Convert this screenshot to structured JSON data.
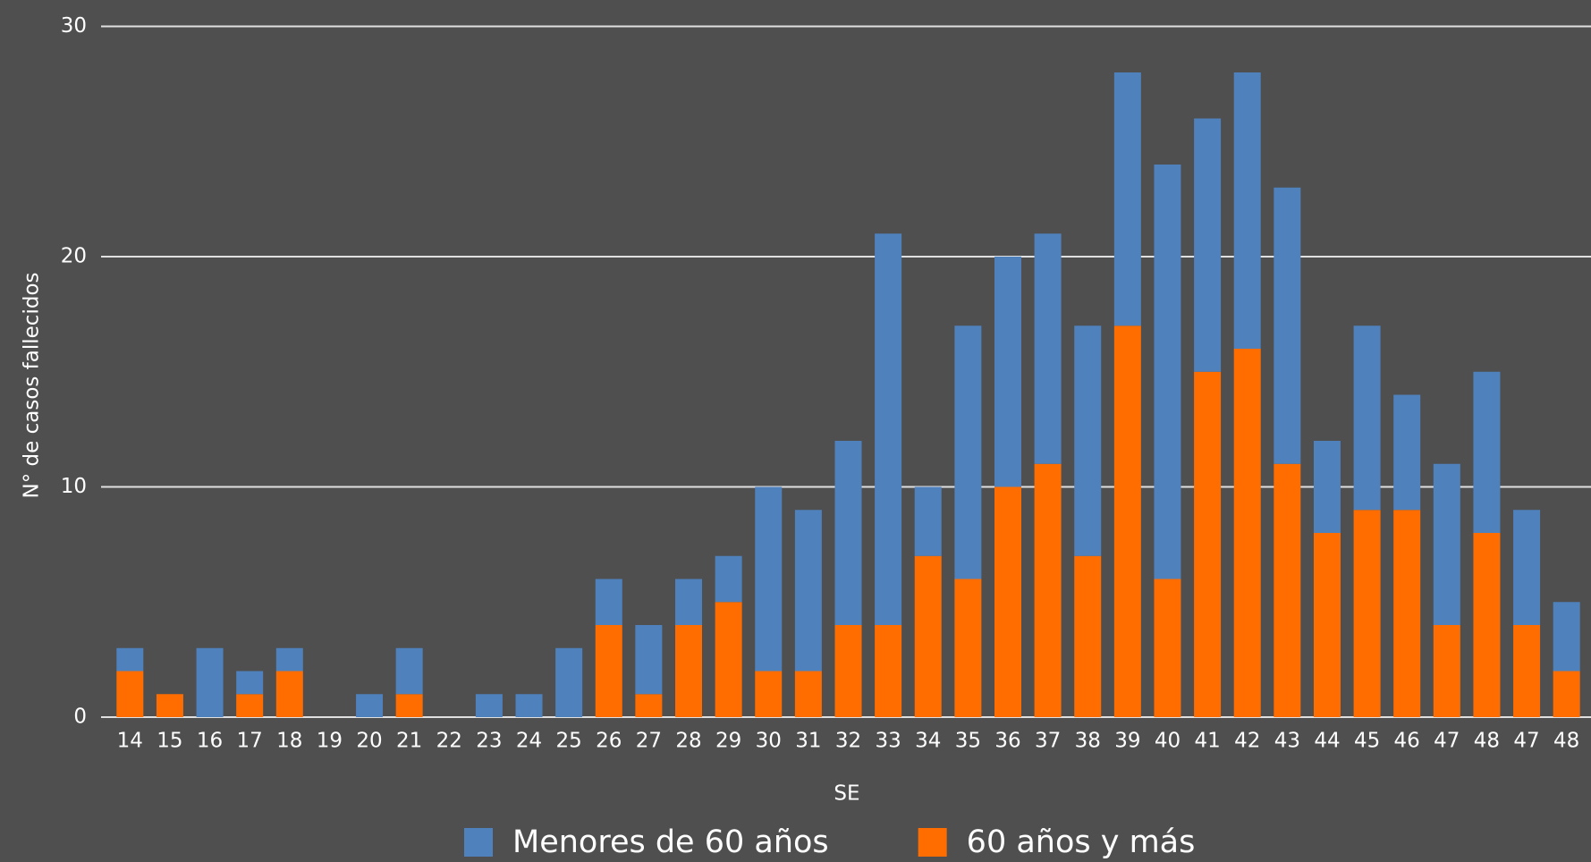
{
  "chart_data": {
    "type": "stacked_bar",
    "x_label": "SE",
    "y_label": "N° de casos fallecidos",
    "categories": [
      "14",
      "15",
      "16",
      "17",
      "18",
      "19",
      "20",
      "21",
      "22",
      "23",
      "24",
      "25",
      "26",
      "27",
      "28",
      "29",
      "30",
      "31",
      "32",
      "33",
      "34",
      "35",
      "36",
      "37",
      "38",
      "39",
      "40",
      "41",
      "42",
      "43",
      "44",
      "45",
      "46",
      "47",
      "48",
      "47",
      "48"
    ],
    "series": [
      {
        "name": "Menores de 60 años",
        "color": "#4f81bd",
        "values": [
          1,
          0,
          3,
          1,
          1,
          0,
          1,
          2,
          0,
          1,
          1,
          3,
          2,
          3,
          2,
          2,
          8,
          7,
          8,
          17,
          3,
          11,
          10,
          10,
          10,
          11,
          18,
          11,
          12,
          12,
          4,
          8,
          5,
          7,
          7,
          5,
          3
        ]
      },
      {
        "name": "60 años y más",
        "color": "#ff6d00",
        "values": [
          2,
          1,
          0,
          1,
          2,
          0,
          0,
          1,
          0,
          0,
          0,
          0,
          4,
          1,
          4,
          5,
          2,
          2,
          4,
          4,
          7,
          6,
          10,
          11,
          7,
          17,
          6,
          15,
          16,
          11,
          8,
          9,
          9,
          4,
          8,
          4,
          2
        ]
      }
    ],
    "ylim": [
      0,
      30
    ],
    "yticks": [
      0,
      10,
      20,
      30
    ],
    "grid": true,
    "legend": "bottom"
  }
}
